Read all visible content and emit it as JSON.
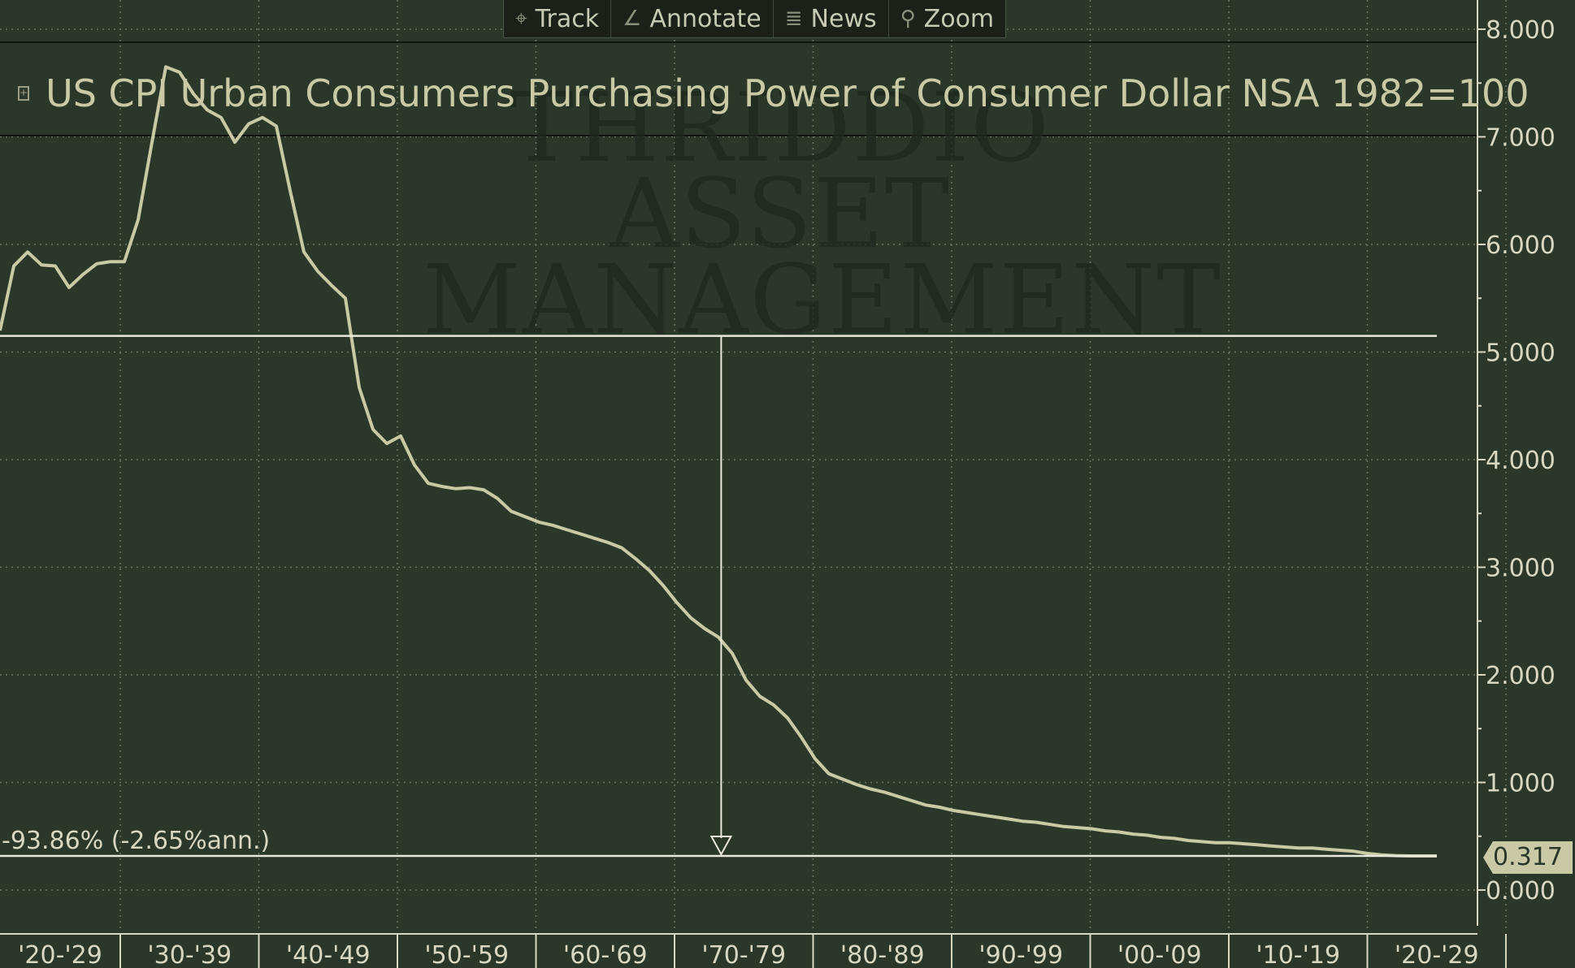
{
  "toolbar": {
    "buttons": [
      {
        "label": "Track",
        "icon": "crosshair-icon",
        "glyph": "⌖"
      },
      {
        "label": "Annotate",
        "icon": "pencil-icon",
        "glyph": "∠"
      },
      {
        "label": "News",
        "icon": "news-icon",
        "glyph": "≣"
      },
      {
        "label": "Zoom",
        "icon": "magnifier-icon",
        "glyph": "⚲"
      }
    ]
  },
  "legend": {
    "toggle": "+",
    "series_name": "US CPI Urban Consumers Purchasing Power of Consumer Dollar NSA 1982=100"
  },
  "watermark": {
    "line1": "THRIDDIO",
    "line2": "ASSET",
    "line3": "MANAGEMENT"
  },
  "annotation": {
    "change_label": "-93.86% (-2.65%ann.)"
  },
  "last_value_label": "0.317",
  "colors": {
    "background": "#2b3829",
    "series": "#c9c9a6",
    "grid": "#6a7560",
    "annotation_lines": "#e8e8dc"
  },
  "chart_data": {
    "type": "line",
    "title": "",
    "xlabel": "",
    "ylabel": "",
    "x_tick_labels": [
      "'20-'29",
      "'30-'39",
      "'40-'49",
      "'50-'59",
      "'60-'69",
      "'70-'79",
      "'80-'89",
      "'90-'99",
      "'00-'09",
      "'10-'19",
      "'20-'29"
    ],
    "y_tick_labels": [
      "8.000",
      "7.000",
      "6.000",
      "5.000",
      "4.000",
      "3.000",
      "2.000",
      "1.000",
      "0.000"
    ],
    "ylim": [
      0,
      8
    ],
    "xlim": [
      1920,
      2029
    ],
    "grid": true,
    "series": [
      {
        "name": "US CPI Urban Consumers Purchasing Power of Consumer Dollar NSA 1982=100",
        "x": [
          1920,
          1921,
          1922,
          1923,
          1924,
          1925,
          1926,
          1927,
          1928,
          1929,
          1930,
          1931,
          1932,
          1933,
          1934,
          1935,
          1936,
          1937,
          1938,
          1939,
          1940,
          1941,
          1942,
          1943,
          1944,
          1945,
          1946,
          1947,
          1948,
          1949,
          1950,
          1951,
          1952,
          1953,
          1954,
          1955,
          1956,
          1957,
          1958,
          1959,
          1960,
          1961,
          1962,
          1963,
          1964,
          1965,
          1966,
          1967,
          1968,
          1969,
          1970,
          1971,
          1972,
          1973,
          1974,
          1975,
          1976,
          1977,
          1978,
          1979,
          1980,
          1981,
          1982,
          1983,
          1984,
          1985,
          1986,
          1987,
          1988,
          1989,
          1990,
          1991,
          1992,
          1993,
          1994,
          1995,
          1996,
          1997,
          1998,
          1999,
          2000,
          2001,
          2002,
          2003,
          2004,
          2005,
          2006,
          2007,
          2008,
          2009,
          2010,
          2011,
          2012,
          2013,
          2014,
          2015,
          2016,
          2017,
          2018,
          2019,
          2020,
          2021,
          2022,
          2023,
          2024
        ],
        "y": [
          5.2,
          5.8,
          5.93,
          5.81,
          5.8,
          5.6,
          5.72,
          5.82,
          5.84,
          5.84,
          6.23,
          6.95,
          7.65,
          7.6,
          7.4,
          7.25,
          7.18,
          6.95,
          7.12,
          7.18,
          7.1,
          6.5,
          5.93,
          5.75,
          5.62,
          5.5,
          4.67,
          4.28,
          4.15,
          4.22,
          3.95,
          3.78,
          3.75,
          3.73,
          3.74,
          3.72,
          3.64,
          3.52,
          3.47,
          3.42,
          3.39,
          3.35,
          3.31,
          3.27,
          3.23,
          3.18,
          3.08,
          2.97,
          2.83,
          2.67,
          2.53,
          2.43,
          2.35,
          2.2,
          1.95,
          1.8,
          1.72,
          1.6,
          1.42,
          1.22,
          1.08,
          1.03,
          0.98,
          0.94,
          0.91,
          0.87,
          0.83,
          0.79,
          0.77,
          0.74,
          0.72,
          0.7,
          0.68,
          0.66,
          0.64,
          0.63,
          0.61,
          0.59,
          0.58,
          0.57,
          0.55,
          0.54,
          0.52,
          0.51,
          0.49,
          0.48,
          0.46,
          0.45,
          0.44,
          0.44,
          0.43,
          0.42,
          0.41,
          0.4,
          0.39,
          0.39,
          0.38,
          0.37,
          0.36,
          0.34,
          0.327,
          0.32,
          0.317,
          0.317,
          0.317
        ]
      }
    ],
    "reference_lines": [
      {
        "type": "horizontal",
        "y": 5.15
      },
      {
        "type": "horizontal",
        "y": 0.317
      },
      {
        "type": "arrow",
        "x": 1972.2,
        "from_y": 5.15,
        "to_y": 0.317
      }
    ]
  }
}
